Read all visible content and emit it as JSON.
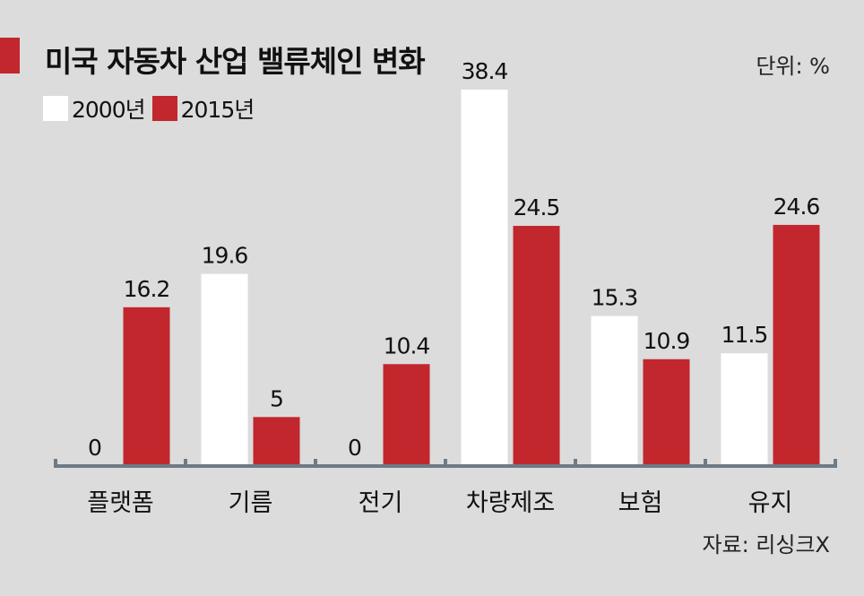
{
  "header": {
    "title": "미국 자동차 산업 밸류체인 변화",
    "unit": "단위: %"
  },
  "legend": [
    {
      "label": "2000년",
      "color": "#ffffff"
    },
    {
      "label": "2015년",
      "color": "#c1272d"
    }
  ],
  "source": "자료: 리싱크X",
  "colors": {
    "accent": "#c1272d",
    "background": "#dcdcdc",
    "axis": "#6e7b86"
  },
  "chart_data": {
    "type": "bar",
    "title": "미국 자동차 산업 밸류체인 변화",
    "xlabel": "",
    "ylabel": "",
    "unit": "%",
    "categories": [
      "플랫폼",
      "기름",
      "전기",
      "차량제조",
      "보험",
      "유지"
    ],
    "series": [
      {
        "name": "2000년",
        "color": "#ffffff",
        "values": [
          0,
          19.6,
          0,
          38.4,
          15.3,
          11.5
        ],
        "labels": [
          "0",
          "19.6",
          "0",
          "38.4",
          "15.3",
          "11.5"
        ]
      },
      {
        "name": "2015년",
        "color": "#c1272d",
        "values": [
          16.2,
          5,
          10.4,
          24.5,
          10.9,
          24.6
        ],
        "labels": [
          "16.2",
          "5",
          "10.4",
          "24.5",
          "10.9",
          "24.6"
        ]
      }
    ],
    "ylim": [
      0,
      38.4
    ],
    "grid": false,
    "legend_position": "top-left"
  }
}
